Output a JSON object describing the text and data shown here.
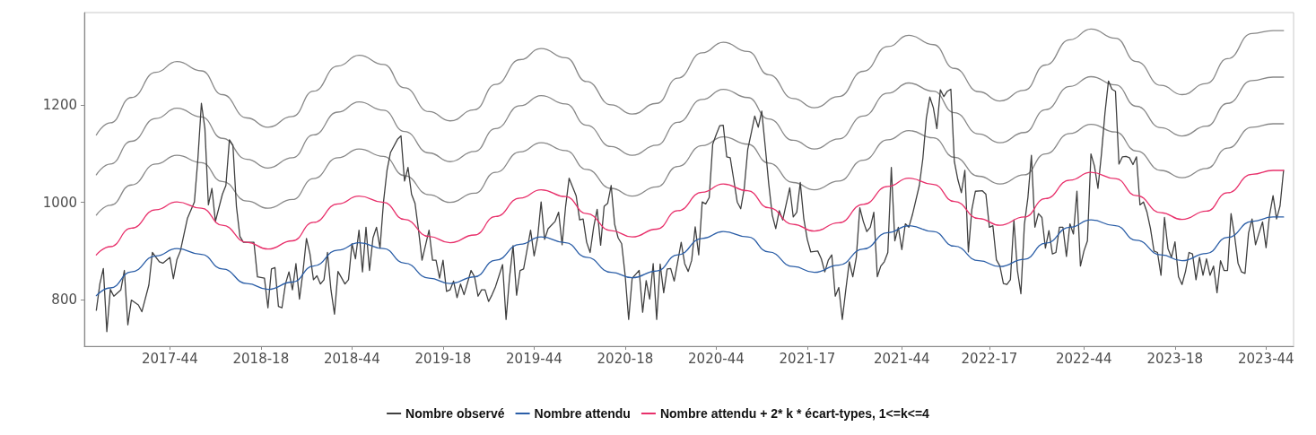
{
  "chart_data": {
    "type": "line",
    "xlim": [
      "2017-05-12",
      "2023-12-24"
    ],
    "ylim": [
      704,
      1391
    ],
    "yticks": [
      800,
      1000,
      1200
    ],
    "xticks": [
      {
        "value": "2017-10-30",
        "label": "2017-44"
      },
      {
        "value": "2018-04-30",
        "label": "2018-18"
      },
      {
        "value": "2018-10-29",
        "label": "2018-44"
      },
      {
        "value": "2019-04-29",
        "label": "2019-18"
      },
      {
        "value": "2019-10-28",
        "label": "2019-44"
      },
      {
        "value": "2020-04-27",
        "label": "2020-18"
      },
      {
        "value": "2020-10-26",
        "label": "2020-44"
      },
      {
        "value": "2021-04-26",
        "label": "2021-17"
      },
      {
        "value": "2021-11-01",
        "label": "2021-44"
      },
      {
        "value": "2022-04-25",
        "label": "2022-17"
      },
      {
        "value": "2022-10-31",
        "label": "2022-44"
      },
      {
        "value": "2023-05-01",
        "label": "2023-18"
      },
      {
        "value": "2023-10-30",
        "label": "2023-44"
      }
    ],
    "grid": false,
    "legend": "bottom",
    "marker": "none",
    "line_style": "solid",
    "x": [
      "2017-06-05",
      "2017-07-03",
      "2017-08-14",
      "2017-10-02",
      "2017-11-13",
      "2018-01-01",
      "2018-02-12",
      "2018-04-02",
      "2018-05-14",
      "2018-07-02",
      "2018-08-13",
      "2018-10-01",
      "2018-11-12",
      "2018-12-31",
      "2019-02-11",
      "2019-04-01",
      "2019-05-13",
      "2019-07-01",
      "2019-08-12",
      "2019-09-30",
      "2019-11-11",
      "2019-12-30",
      "2020-02-10",
      "2020-03-30",
      "2020-05-11",
      "2020-06-29",
      "2020-08-10",
      "2020-09-28",
      "2020-11-09",
      "2020-12-28",
      "2021-02-08",
      "2021-03-29",
      "2021-05-10",
      "2021-06-28",
      "2021-08-16",
      "2021-10-04",
      "2021-11-15",
      "2022-01-03",
      "2022-02-14",
      "2022-04-04",
      "2022-05-16",
      "2022-07-04",
      "2022-08-15",
      "2022-10-03",
      "2022-11-14",
      "2023-01-02",
      "2023-02-13",
      "2023-04-03",
      "2023-05-15",
      "2023-07-03",
      "2023-08-14",
      "2023-10-02",
      "2023-11-13",
      "2023-12-04"
    ],
    "series": [
      {
        "name": "Nombre observé",
        "color": "#404040",
        "x": [
          "2017-06-05",
          "2017-06-12",
          "2017-06-19",
          "2017-06-26",
          "2017-07-03",
          "2017-07-10",
          "2017-07-24",
          "2017-07-31",
          "2017-08-07",
          "2017-08-14",
          "2017-08-28",
          "2017-09-04",
          "2017-09-18",
          "2017-09-25",
          "2017-10-09",
          "2017-10-16",
          "2017-10-30",
          "2017-11-06",
          "2017-11-13",
          "2017-11-20",
          "2017-12-04",
          "2017-12-18",
          "2017-12-25",
          "2018-01-01",
          "2018-01-08",
          "2018-01-15",
          "2018-01-22",
          "2018-01-29",
          "2018-02-12",
          "2018-02-19",
          "2018-02-26",
          "2018-03-05",
          "2018-03-12",
          "2018-03-19",
          "2018-03-26",
          "2018-04-16",
          "2018-04-23",
          "2018-05-07",
          "2018-05-14",
          "2018-05-21",
          "2018-05-28",
          "2018-06-04",
          "2018-06-11",
          "2018-06-18",
          "2018-06-25",
          "2018-07-02",
          "2018-07-09",
          "2018-07-16",
          "2018-07-23",
          "2018-07-30",
          "2018-08-06",
          "2018-08-13",
          "2018-08-20",
          "2018-08-27",
          "2018-09-03",
          "2018-09-10",
          "2018-09-17",
          "2018-09-24",
          "2018-10-01",
          "2018-10-15",
          "2018-10-22",
          "2018-10-29",
          "2018-11-05",
          "2018-11-12",
          "2018-11-19",
          "2018-11-26",
          "2018-12-03",
          "2018-12-10",
          "2018-12-17",
          "2018-12-24",
          "2018-12-31",
          "2019-01-07",
          "2019-01-14",
          "2019-01-28",
          "2019-02-04",
          "2019-02-11",
          "2019-02-18",
          "2019-02-25",
          "2019-03-04",
          "2019-03-11",
          "2019-03-18",
          "2019-04-01",
          "2019-04-08",
          "2019-04-15",
          "2019-04-22",
          "2019-04-29",
          "2019-05-06",
          "2019-05-13",
          "2019-05-20",
          "2019-05-27",
          "2019-06-03",
          "2019-06-10",
          "2019-06-24",
          "2019-07-01",
          "2019-07-08",
          "2019-07-15",
          "2019-07-22",
          "2019-07-29",
          "2019-08-05",
          "2019-08-12",
          "2019-08-26",
          "2019-09-02",
          "2019-09-09",
          "2019-09-16",
          "2019-09-23",
          "2019-09-30",
          "2019-10-07",
          "2019-10-14",
          "2019-10-21",
          "2019-10-28",
          "2019-11-04",
          "2019-11-11",
          "2019-11-18",
          "2019-11-25",
          "2019-12-09",
          "2019-12-16",
          "2019-12-23",
          "2019-12-30",
          "2020-01-06",
          "2020-01-13",
          "2020-01-20",
          "2020-01-27",
          "2020-02-03",
          "2020-02-10",
          "2020-02-17",
          "2020-02-24",
          "2020-03-02",
          "2020-03-09",
          "2020-03-16",
          "2020-03-23",
          "2020-03-30",
          "2020-04-06",
          "2020-04-13",
          "2020-04-20",
          "2020-04-27",
          "2020-05-04",
          "2020-05-11",
          "2020-05-18",
          "2020-05-25",
          "2020-06-01",
          "2020-06-08",
          "2020-06-15",
          "2020-06-22",
          "2020-06-29",
          "2020-07-06",
          "2020-07-13",
          "2020-07-20",
          "2020-07-27",
          "2020-08-03",
          "2020-08-10",
          "2020-08-17",
          "2020-08-24",
          "2020-08-31",
          "2020-09-07",
          "2020-09-14",
          "2020-09-21",
          "2020-09-28",
          "2020-10-05",
          "2020-10-12",
          "2020-10-19",
          "2020-10-26",
          "2020-11-02",
          "2020-11-09",
          "2020-11-16",
          "2020-11-23",
          "2020-11-30",
          "2020-12-07",
          "2020-12-14",
          "2020-12-21",
          "2020-12-28",
          "2021-01-04",
          "2021-01-11",
          "2021-01-18",
          "2021-01-25",
          "2021-02-01",
          "2021-02-08",
          "2021-02-15",
          "2021-02-22",
          "2021-03-01",
          "2021-03-08",
          "2021-03-22",
          "2021-03-29",
          "2021-04-05",
          "2021-04-12",
          "2021-04-19",
          "2021-04-26",
          "2021-05-03",
          "2021-05-17",
          "2021-05-24",
          "2021-05-31",
          "2021-06-07",
          "2021-06-14",
          "2021-06-21",
          "2021-06-28",
          "2021-07-05",
          "2021-07-12",
          "2021-07-19",
          "2021-07-26",
          "2021-08-02",
          "2021-08-09",
          "2021-08-16",
          "2021-08-23",
          "2021-08-30",
          "2021-09-06",
          "2021-09-13",
          "2021-09-20",
          "2021-09-27",
          "2021-10-04",
          "2021-10-11",
          "2021-10-18",
          "2021-10-25",
          "2021-11-01",
          "2021-11-08",
          "2021-11-15",
          "2021-11-22",
          "2021-12-06",
          "2021-12-13",
          "2021-12-20",
          "2021-12-27",
          "2022-01-03",
          "2022-01-10",
          "2022-01-17",
          "2022-01-24",
          "2022-01-31",
          "2022-02-07",
          "2022-02-14",
          "2022-02-21",
          "2022-02-28",
          "2022-03-07",
          "2022-03-14",
          "2022-03-21",
          "2022-03-28",
          "2022-04-11",
          "2022-04-18",
          "2022-04-25",
          "2022-05-02",
          "2022-05-09",
          "2022-05-16",
          "2022-05-23",
          "2022-05-30",
          "2022-06-06",
          "2022-06-13",
          "2022-06-20",
          "2022-06-27",
          "2022-07-04",
          "2022-07-11",
          "2022-07-18",
          "2022-07-25",
          "2022-08-01",
          "2022-08-08",
          "2022-08-15",
          "2022-08-22",
          "2022-08-29",
          "2022-09-05",
          "2022-09-12",
          "2022-09-19",
          "2022-09-26",
          "2022-10-03",
          "2022-10-10",
          "2022-10-17",
          "2022-10-24",
          "2022-10-31",
          "2022-11-07",
          "2022-11-14",
          "2022-11-21",
          "2022-11-28",
          "2022-12-05",
          "2022-12-12",
          "2022-12-19",
          "2022-12-26",
          "2023-01-02",
          "2023-01-09",
          "2023-01-16",
          "2023-01-23",
          "2023-01-30",
          "2023-02-06",
          "2023-02-13",
          "2023-02-20",
          "2023-02-27",
          "2023-03-06",
          "2023-03-13",
          "2023-03-20",
          "2023-03-27",
          "2023-04-03",
          "2023-04-10",
          "2023-04-17",
          "2023-04-24",
          "2023-05-01",
          "2023-05-08",
          "2023-05-15",
          "2023-05-22",
          "2023-05-29",
          "2023-06-05",
          "2023-06-12",
          "2023-06-19",
          "2023-06-26",
          "2023-07-03",
          "2023-07-10",
          "2023-07-17",
          "2023-07-24",
          "2023-07-31",
          "2023-08-07",
          "2023-08-14",
          "2023-08-21",
          "2023-08-28",
          "2023-09-04",
          "2023-09-11",
          "2023-09-18",
          "2023-09-25",
          "2023-10-02",
          "2023-10-09",
          "2023-10-16",
          "2023-10-23",
          "2023-10-30",
          "2023-11-06",
          "2023-11-13",
          "2023-11-20",
          "2023-11-27",
          "2023-12-04"
        ],
        "values": [
          778,
          832,
          864,
          734,
          821,
          807,
          820,
          860,
          748,
          799,
          789,
          775,
          830,
          897,
          878,
          875,
          887,
          843,
          882,
          900,
          967,
          1001,
          1090,
          1204,
          1152,
          995,
          1029,
          961,
          1017,
          1035,
          1129,
          1118,
          992,
          930,
          918,
          918,
          847,
          844,
          783,
          863,
          866,
          786,
          783,
          832,
          857,
          820,
          874,
          801,
          857,
          926,
          894,
          841,
          849,
          832,
          841,
          897,
          820,
          770,
          858,
          832,
          841,
          915,
          884,
          943,
          857,
          949,
          860,
          927,
          949,
          906,
          1001,
          1066,
          1103,
          1130,
          1137,
          1044,
          1072,
          1017,
          998,
          943,
          881,
          943,
          881,
          881,
          844,
          881,
          817,
          820,
          838,
          804,
          832,
          810,
          860,
          847,
          807,
          820,
          820,
          796,
          810,
          827,
          872,
          759,
          847,
          911,
          809,
          860,
          863,
          903,
          943,
          890,
          927,
          1001,
          924,
          946,
          961,
          980,
          913,
          992,
          1050,
          1032,
          1014,
          964,
          966,
          918,
          897,
          949,
          986,
          912,
          992,
          998,
          1035,
          955,
          927,
          915,
          850,
          759,
          844,
          852,
          860,
          774,
          839,
          801,
          874,
          759,
          873,
          814,
          863,
          864,
          838,
          878,
          918,
          874,
          858,
          881,
          950,
          892,
          1001,
          997,
          1010,
          1120,
          1140,
          1158,
          1159,
          1094,
          1092,
          1047,
          1001,
          987,
          1029,
          1109,
          1143,
          1178,
          1155,
          1188,
          1115,
          1038,
          974,
          946,
          983,
          964,
          1030,
          970,
          980,
          1041,
          967,
          924,
          898,
          900,
          884,
          857,
          881,
          892,
          807,
          825,
          759,
          820,
          878,
          847,
          887,
          989,
          961,
          940,
          949,
          980,
          847,
          869,
          878,
          897,
          1072,
          921,
          949,
          903,
          956,
          949,
          974,
          1035,
          1090,
          1174,
          1217,
          1195,
          1152,
          1232,
          1218,
          1229,
          1233,
          1084,
          1047,
          1020,
          1066,
          898,
          986,
          1023,
          1024,
          1017,
          949,
          952,
          882,
          869,
          833,
          831,
          841,
          964,
          860,
          812,
          955,
          1010,
          1097,
          949,
          977,
          969,
          906,
          942,
          894,
          897,
          949,
          949,
          889,
          956,
          935,
          1023,
          869,
          900,
          921,
          1100,
          1075,
          1029,
          1100,
          1184,
          1250,
          1233,
          1229,
          1079,
          1094,
          1095,
          1092,
          1078,
          1094,
          995,
          1001,
          980,
          946,
          900,
          897,
          850,
          969,
          905,
          887,
          919,
          847,
          831,
          858,
          897,
          894,
          841,
          887,
          850,
          884,
          850,
          869,
          814,
          880,
          860,
          860,
          977,
          932,
          875,
          857,
          854,
          937,
          966,
          913,
          937,
          960,
          907,
          974,
          1014,
          966,
          993,
          1066
        ]
      },
      {
        "name": "Nombre attendu",
        "color": "#2b5ea7",
        "values": [
          808,
          824,
          857,
          890,
          905,
          893,
          863,
          833,
          821,
          836,
          869,
          902,
          917,
          905,
          875,
          844,
          833,
          847,
          881,
          914,
          929,
          917,
          887,
          856,
          845,
          859,
          892,
          926,
          940,
          929,
          898,
          868,
          856,
          871,
          904,
          938,
          952,
          940,
          910,
          880,
          868,
          883,
          916,
          949,
          964,
          952,
          922,
          892,
          880,
          895,
          928,
          961,
          970,
          970
        ]
      },
      {
        "name": "Nombre attendu + 2* k * écart-types, 1<=k<=4",
        "color": "#e8306b",
        "values": [
          892,
          909,
          947,
          985,
          1001,
          988,
          953,
          918,
          904,
          921,
          959,
          997,
          1013,
          1000,
          965,
          930,
          917,
          933,
          971,
          1009,
          1026,
          1012,
          977,
          942,
          929,
          945,
          983,
          1021,
          1038,
          1024,
          989,
          955,
          941,
          958,
          996,
          1033,
          1050,
          1037,
          1002,
          967,
          953,
          970,
          1008,
          1046,
          1062,
          1049,
          1014,
          979,
          965,
          982,
          1020,
          1058,
          1066,
          1066
        ]
      },
      {
        "color": "#888888",
        "values": [
          974,
          994,
          1036,
          1079,
          1097,
          1082,
          1043,
          1003,
          988,
          1006,
          1049,
          1092,
          1110,
          1095,
          1055,
          1016,
          1000,
          1019,
          1062,
          1104,
          1123,
          1107,
          1068,
          1029,
          1013,
          1032,
          1074,
          1117,
          1135,
          1120,
          1081,
          1041,
          1026,
          1044,
          1087,
          1129,
          1148,
          1133,
          1093,
          1054,
          1038,
          1057,
          1100,
          1142,
          1161,
          1145,
          1106,
          1066,
          1051,
          1070,
          1112,
          1155,
          1162,
          1162
        ]
      },
      {
        "color": "#888888",
        "values": [
          1057,
          1079,
          1126,
          1173,
          1194,
          1176,
          1132,
          1089,
          1071,
          1092,
          1139,
          1186,
          1207,
          1190,
          1146,
          1102,
          1084,
          1105,
          1152,
          1199,
          1220,
          1203,
          1159,
          1115,
          1097,
          1118,
          1165,
          1212,
          1233,
          1216,
          1172,
          1128,
          1110,
          1131,
          1178,
          1225,
          1246,
          1229,
          1185,
          1141,
          1123,
          1144,
          1191,
          1239,
          1259,
          1242,
          1198,
          1154,
          1137,
          1157,
          1204,
          1251,
          1258,
          1258
        ]
      },
      {
        "color": "#888888",
        "values": [
          1139,
          1164,
          1216,
          1268,
          1290,
          1271,
          1222,
          1174,
          1155,
          1177,
          1229,
          1281,
          1303,
          1284,
          1236,
          1187,
          1168,
          1191,
          1243,
          1294,
          1317,
          1298,
          1249,
          1201,
          1182,
          1204,
          1256,
          1308,
          1330,
          1311,
          1263,
          1214,
          1195,
          1218,
          1270,
          1321,
          1344,
          1325,
          1276,
          1228,
          1209,
          1231,
          1283,
          1335,
          1357,
          1338,
          1290,
          1241,
          1222,
          1245,
          1296,
          1348,
          1354,
          1354
        ]
      }
    ]
  }
}
